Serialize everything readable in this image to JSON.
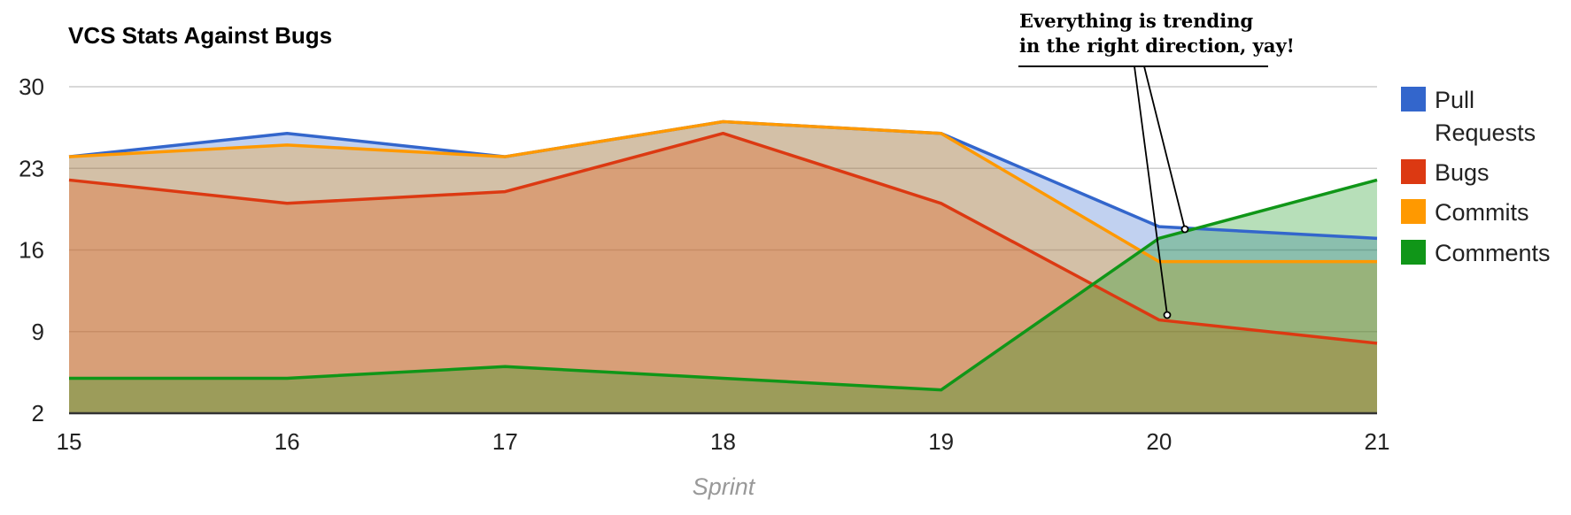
{
  "chart_data": {
    "type": "area",
    "title": "VCS Stats Against Bugs",
    "xlabel": "Sprint",
    "ylabel": "",
    "categories": [
      "15",
      "16",
      "17",
      "18",
      "19",
      "20",
      "21"
    ],
    "y_ticks": [
      "30",
      "23",
      "16",
      "9",
      "2"
    ],
    "ylim": [
      2,
      30
    ],
    "grid": true,
    "legend_position": "right",
    "series": [
      {
        "name": "Pull Requests",
        "color": "#3366cc",
        "values": [
          24,
          26,
          24,
          27,
          26,
          18,
          17
        ]
      },
      {
        "name": "Bugs",
        "color": "#dc3912",
        "values": [
          22,
          20,
          21,
          26,
          20,
          10,
          8
        ]
      },
      {
        "name": "Commits",
        "color": "#ff9900",
        "values": [
          24,
          25,
          24,
          27,
          26,
          15,
          15
        ]
      },
      {
        "name": "Comments",
        "color": "#109618",
        "values": [
          5,
          5,
          6,
          5,
          4,
          17,
          22
        ]
      }
    ],
    "legend_labels": [
      [
        "Pull",
        "Requests"
      ],
      [
        "Bugs"
      ],
      [
        "Commits"
      ],
      [
        "Comments"
      ]
    ],
    "annotation": {
      "lines": [
        "Everything is trending",
        "in the right direction,  yay!"
      ]
    }
  }
}
